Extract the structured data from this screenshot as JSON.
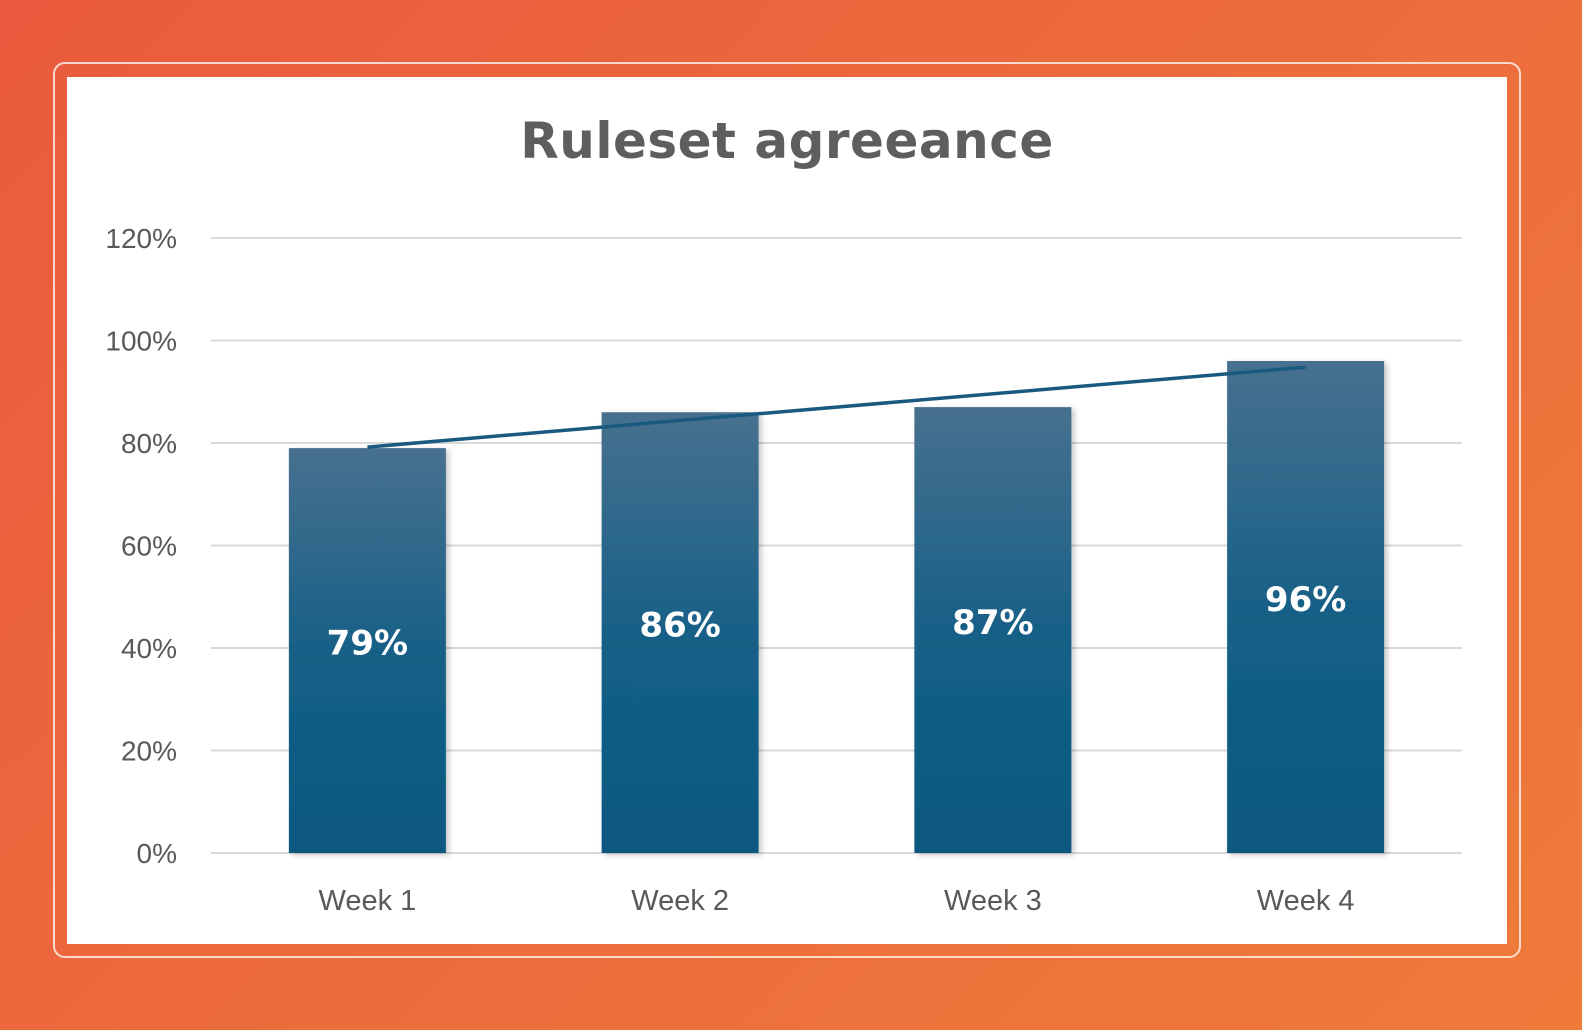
{
  "chart_data": {
    "type": "bar",
    "title": "Ruleset agreeance",
    "categories": [
      "Week 1",
      "Week 2",
      "Week 3",
      "Week 4"
    ],
    "values": [
      79,
      86,
      87,
      96
    ],
    "value_labels": [
      "79%",
      "86%",
      "87%",
      "96%"
    ],
    "yticks": [
      "0%",
      "20%",
      "40%",
      "60%",
      "80%",
      "100%",
      "120%"
    ],
    "ylim": [
      0,
      120
    ],
    "ytick_step": 20,
    "grid": true,
    "legend": "none",
    "trendline": "linear",
    "colors": {
      "bar_top": "#47708f",
      "bar_bottom": "#0b5880",
      "trendline": "#1a5a80",
      "grid": "#d9d9d9"
    }
  }
}
